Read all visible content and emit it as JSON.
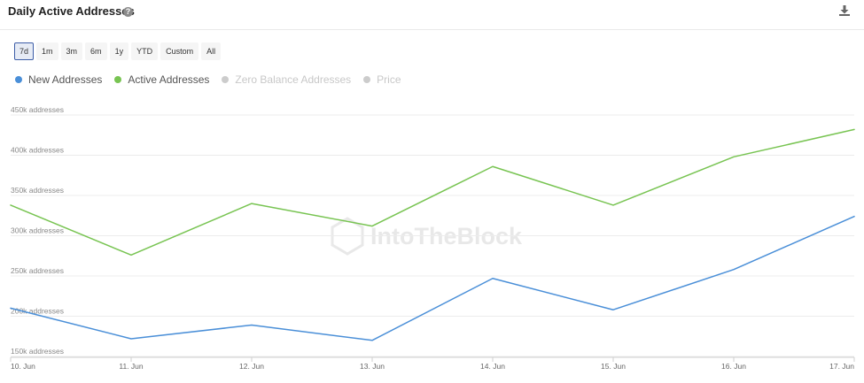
{
  "header": {
    "title": "Daily Active Addresses",
    "help_glyph": "?",
    "help_icon": "question-circle-icon",
    "download_icon": "download-icon"
  },
  "ranges": [
    {
      "label": "7d",
      "active": true
    },
    {
      "label": "1m",
      "active": false
    },
    {
      "label": "3m",
      "active": false
    },
    {
      "label": "6m",
      "active": false
    },
    {
      "label": "1y",
      "active": false
    },
    {
      "label": "YTD",
      "active": false
    },
    {
      "label": "Custom",
      "active": false
    },
    {
      "label": "All",
      "active": false
    }
  ],
  "legend": [
    {
      "label": "New Addresses",
      "color": "#4a8fd8",
      "visible": true
    },
    {
      "label": "Active Addresses",
      "color": "#78c452",
      "visible": true
    },
    {
      "label": "Zero Balance Addresses",
      "color": "#cccccc",
      "visible": false
    },
    {
      "label": "Price",
      "color": "#cccccc",
      "visible": false
    }
  ],
  "watermark": "IntoTheBlock",
  "chart_data": {
    "type": "line",
    "x": [
      "10. Jun",
      "11. Jun",
      "12. Jun",
      "13. Jun",
      "14. Jun",
      "15. Jun",
      "16. Jun",
      "17. Jun"
    ],
    "series": [
      {
        "name": "New Addresses",
        "color": "#4a8fd8",
        "values": [
          210000,
          172000,
          189000,
          170000,
          247000,
          208000,
          258000,
          324000
        ]
      },
      {
        "name": "Active Addresses",
        "color": "#78c452",
        "values": [
          338000,
          276000,
          340000,
          312000,
          386000,
          338000,
          398000,
          432000
        ]
      }
    ],
    "y_ticks": [
      {
        "value": 150000,
        "label": "150k addresses"
      },
      {
        "value": 200000,
        "label": "200k addresses"
      },
      {
        "value": 250000,
        "label": "250k addresses"
      },
      {
        "value": 300000,
        "label": "300k addresses"
      },
      {
        "value": 350000,
        "label": "350k addresses"
      },
      {
        "value": 400000,
        "label": "400k addresses"
      },
      {
        "value": 450000,
        "label": "450k addresses"
      }
    ],
    "ylim": [
      150000,
      450000
    ],
    "grid": true,
    "legend_position": "top-left"
  }
}
